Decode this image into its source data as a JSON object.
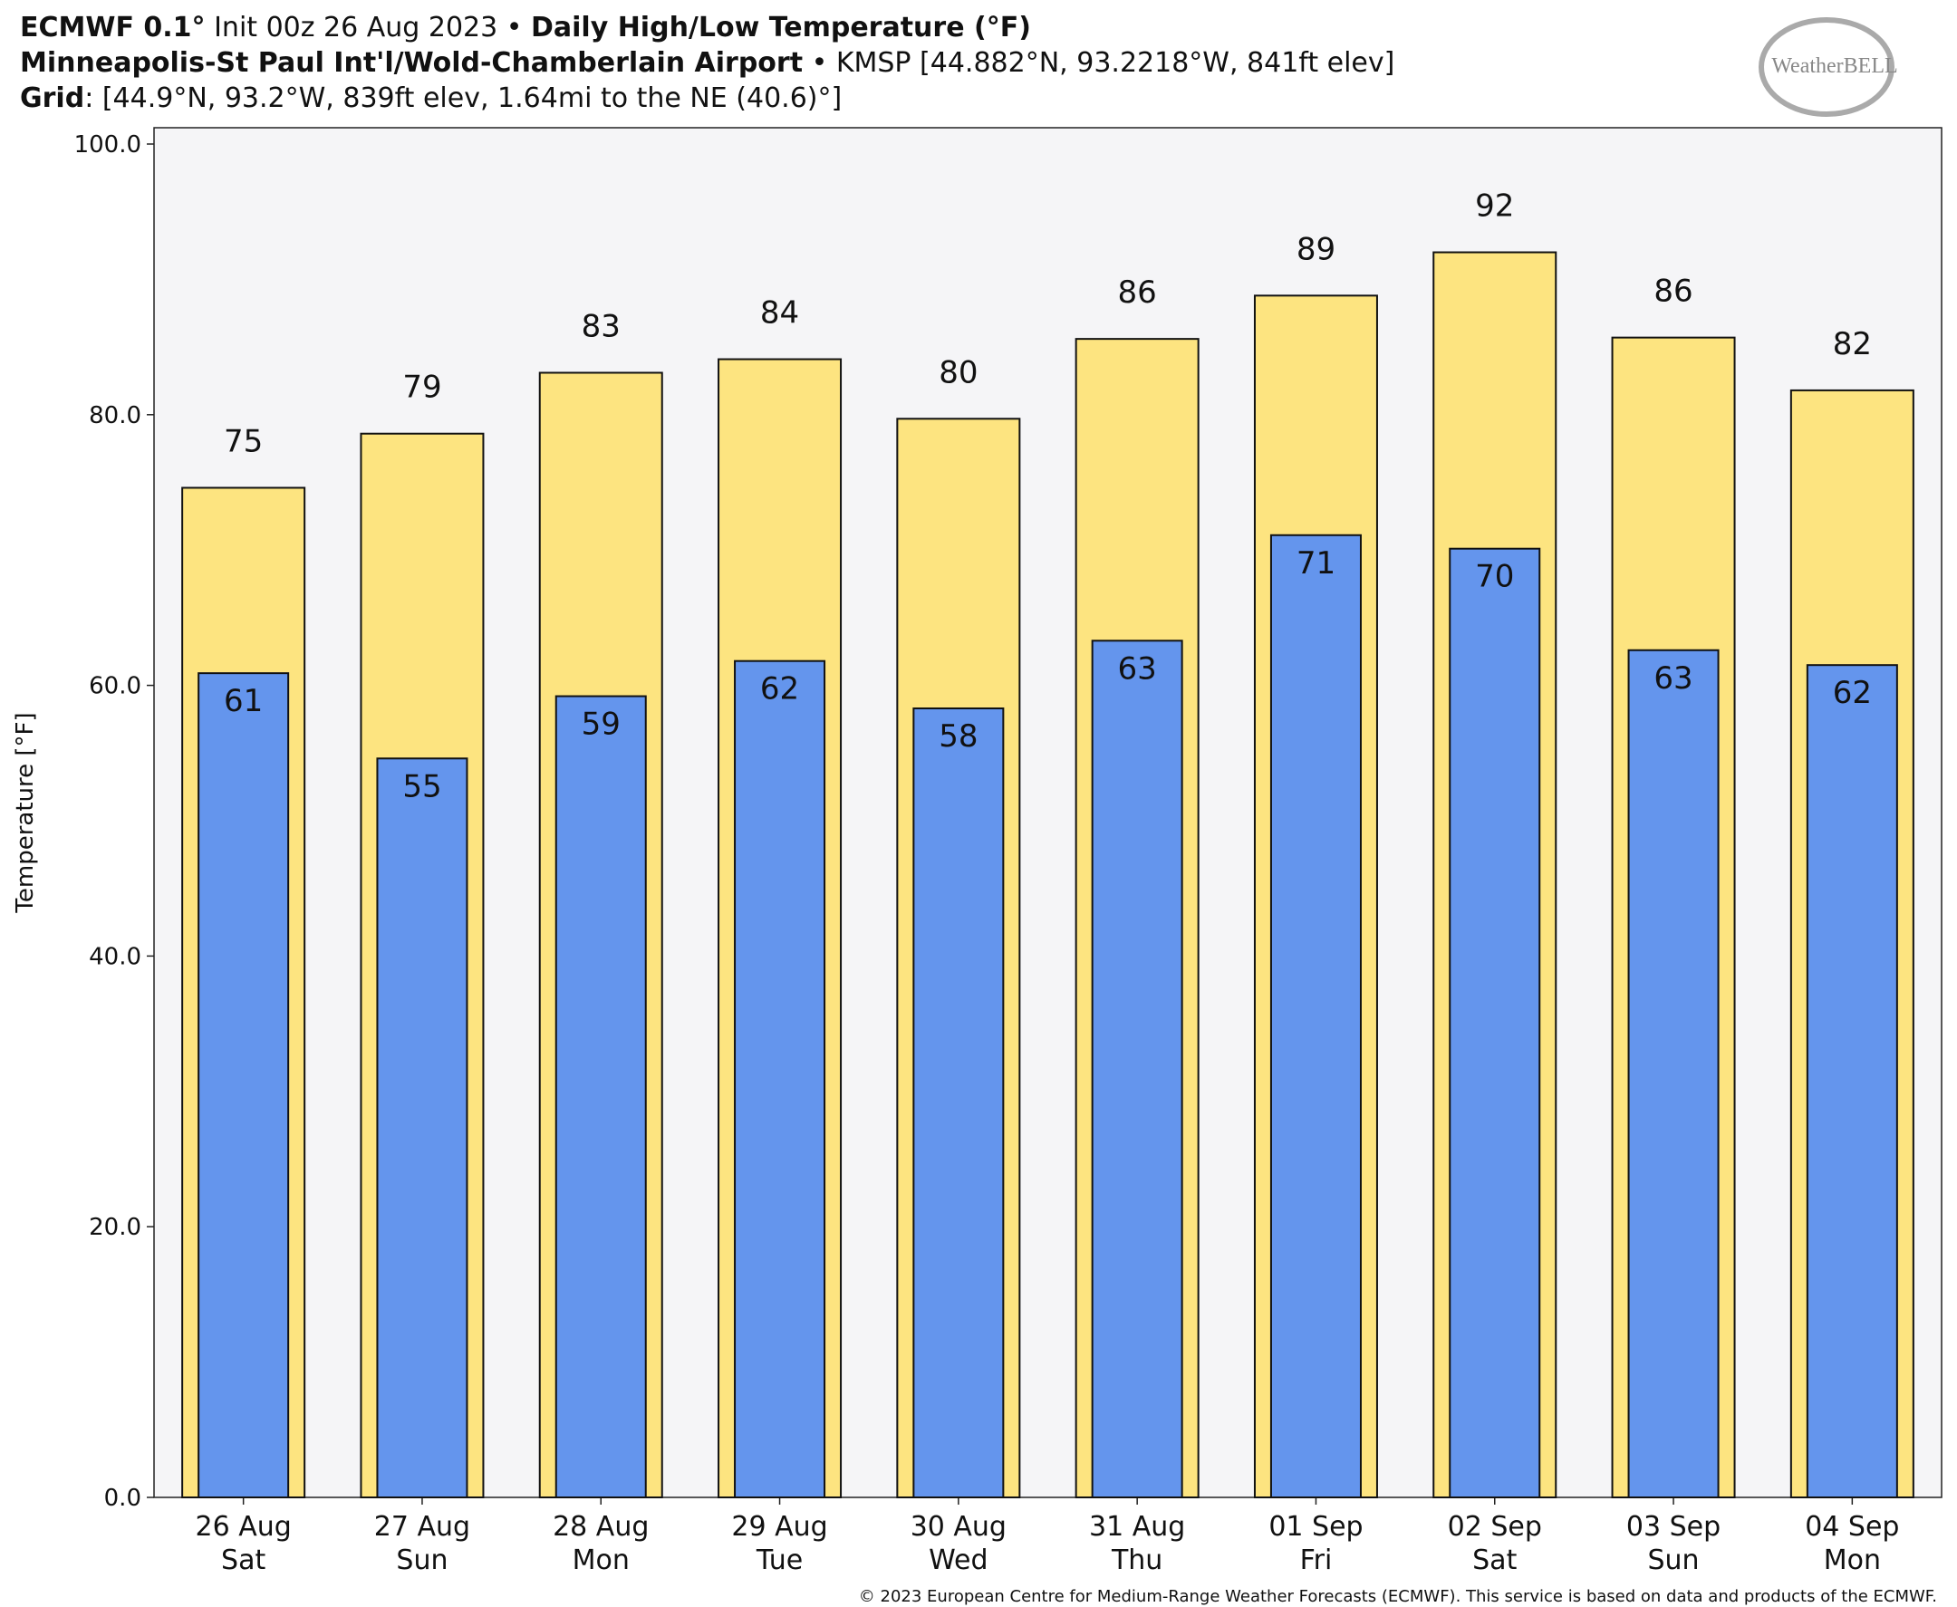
{
  "chart_data": {
    "type": "bar",
    "title": [
      "ECMWF 0.1°",
      " Init 00z 26 Aug 2023 • ",
      "Daily High/Low Temperature (°F)"
    ],
    "subtitle": [
      "Minneapolis-St Paul Int'l/Wold-Chamberlain Airport",
      " • KMSP [44.882°N, 93.2218°W, 841ft elev]"
    ],
    "grid_info": [
      "Grid",
      ": [44.9°N, 93.2°W, 839ft elev, 1.64mi to the NE (40.6)°]"
    ],
    "logo": "WeatherBELL",
    "ylabel": "Temperature [°F]",
    "footer": "© 2023 European Centre for Medium-Range Weather Forecasts (ECMWF). This service is based on data and products of the ECMWF.",
    "categories": [
      [
        "26 Aug",
        "Sat"
      ],
      [
        "27 Aug",
        "Sun"
      ],
      [
        "28 Aug",
        "Mon"
      ],
      [
        "29 Aug",
        "Tue"
      ],
      [
        "30 Aug",
        "Wed"
      ],
      [
        "31 Aug",
        "Thu"
      ],
      [
        "01 Sep",
        "Fri"
      ],
      [
        "02 Sep",
        "Sat"
      ],
      [
        "03 Sep",
        "Sun"
      ],
      [
        "04 Sep",
        "Mon"
      ]
    ],
    "series": [
      {
        "color": "#fde480",
        "values": [
          74.6,
          78.6,
          83.1,
          84.1,
          79.7,
          85.6,
          88.8,
          92.0,
          85.7,
          81.8
        ],
        "value_labels": [
          "75",
          "79",
          "83",
          "84",
          "80",
          "86",
          "89",
          "92",
          "86",
          "82"
        ]
      },
      {
        "color": "#6495ed",
        "values": [
          60.9,
          54.6,
          59.2,
          61.8,
          58.3,
          63.3,
          71.1,
          70.1,
          62.6,
          61.5
        ],
        "value_labels": [
          "61",
          "55",
          "59",
          "62",
          "58",
          "63",
          "71",
          "70",
          "63",
          "62"
        ]
      }
    ],
    "ylim": [
      0,
      100
    ],
    "yticks": [
      {
        "value": 0,
        "label": "0.0"
      },
      {
        "value": 20,
        "label": "20.0"
      },
      {
        "value": 40,
        "label": "40.0"
      },
      {
        "value": 60,
        "label": "60.0"
      },
      {
        "value": 80,
        "label": "80.0"
      },
      {
        "value": 100,
        "label": "100.0"
      }
    ],
    "plot_background": "#f5f5f7"
  }
}
